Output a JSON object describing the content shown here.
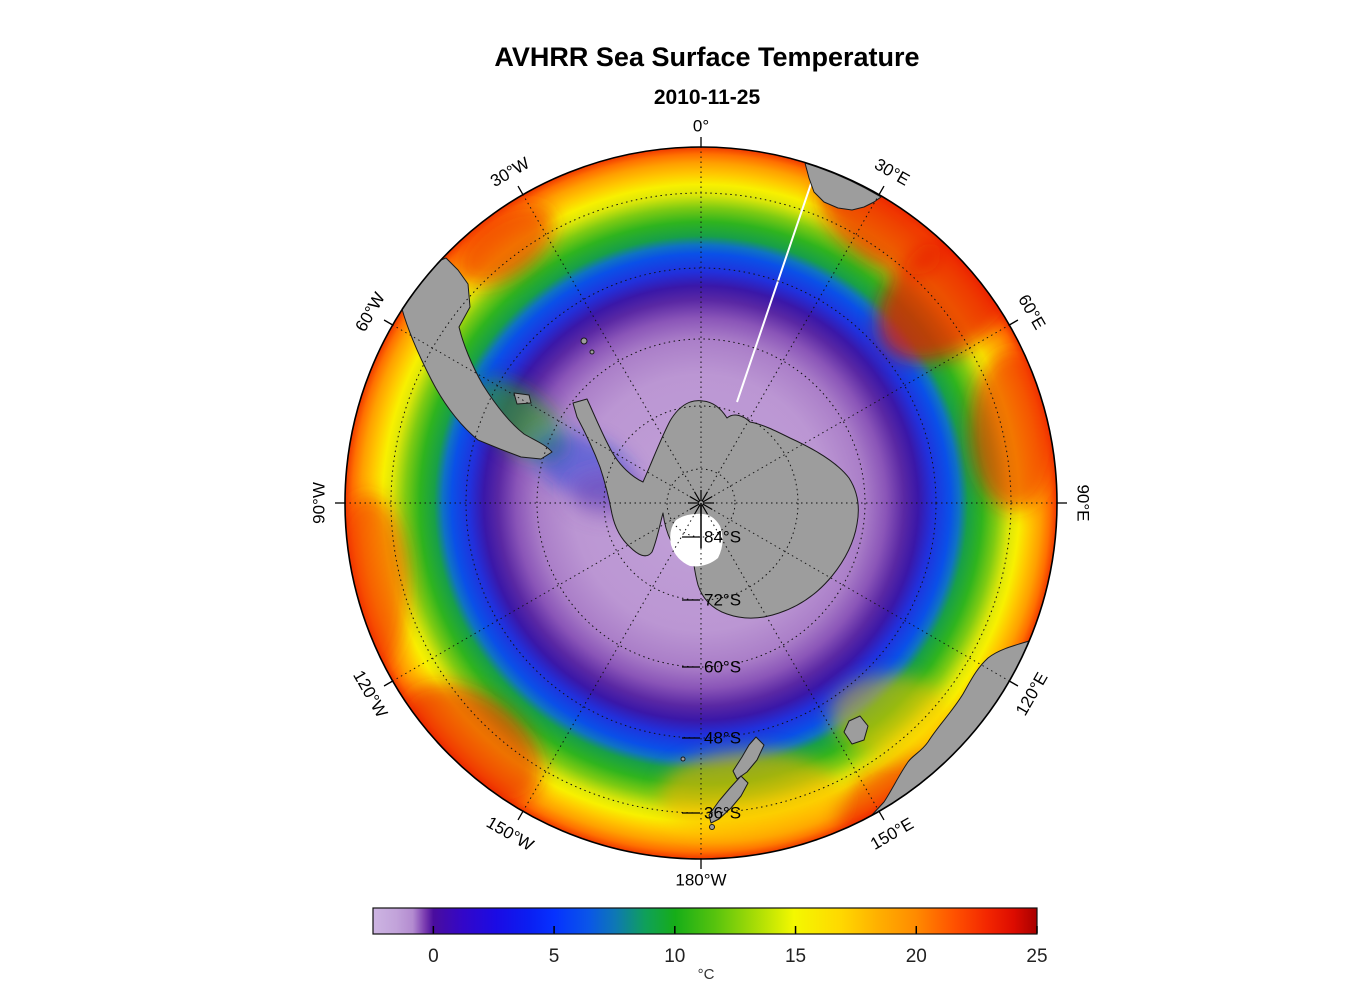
{
  "title": "AVHRR Sea Surface Temperature",
  "subtitle": "2010-11-25",
  "chart_data": {
    "type": "heatmap",
    "projection": "south-polar-stereographic",
    "title": "AVHRR Sea Surface Temperature",
    "subtitle": "2010-11-25",
    "colorbar": {
      "unit": "°C",
      "orientation": "horizontal",
      "range": [
        -2.5,
        25
      ],
      "ticks": [
        0,
        5,
        10,
        15,
        20,
        25
      ],
      "gradient": [
        {
          "frac": 0.0,
          "color": "#cdb5e2"
        },
        {
          "frac": 0.035,
          "color": "#c2a3da"
        },
        {
          "frac": 0.06,
          "color": "#b38bd0"
        },
        {
          "frac": 0.078,
          "color": "#7a3cb0"
        },
        {
          "frac": 0.091,
          "color": "#4a0d9e"
        },
        {
          "frac": 0.135,
          "color": "#3307c8"
        },
        {
          "frac": 0.185,
          "color": "#1b0be4"
        },
        {
          "frac": 0.235,
          "color": "#0a1ef2"
        },
        {
          "frac": 0.273,
          "color": "#0632ff"
        },
        {
          "frac": 0.325,
          "color": "#0a56e8"
        },
        {
          "frac": 0.365,
          "color": "#0e78b4"
        },
        {
          "frac": 0.41,
          "color": "#0fa05a"
        },
        {
          "frac": 0.455,
          "color": "#16ad18"
        },
        {
          "frac": 0.515,
          "color": "#57c30e"
        },
        {
          "frac": 0.575,
          "color": "#a6dc06"
        },
        {
          "frac": 0.634,
          "color": "#f4f800"
        },
        {
          "frac": 0.705,
          "color": "#ffd800"
        },
        {
          "frac": 0.76,
          "color": "#ffb000"
        },
        {
          "frac": 0.816,
          "color": "#ff8c00"
        },
        {
          "frac": 0.875,
          "color": "#ff5200"
        },
        {
          "frac": 0.925,
          "color": "#f32600"
        },
        {
          "frac": 0.965,
          "color": "#dd0c00"
        },
        {
          "frac": 1.0,
          "color": "#a80000"
        }
      ]
    },
    "graticule": {
      "latitude_rings": [
        {
          "label": "84°S",
          "radius_frac": 0.0955
        },
        {
          "label": "72°S",
          "radius_frac": 0.2725
        },
        {
          "label": "60°S",
          "radius_frac": 0.4607
        },
        {
          "label": "48°S",
          "radius_frac": 0.6601
        },
        {
          "label": "36°S",
          "radius_frac": 0.8708
        }
      ],
      "longitude_spokes": [
        {
          "label": "0°",
          "azimuth_deg": 0
        },
        {
          "label": "30°E",
          "azimuth_deg": 30
        },
        {
          "label": "60°E",
          "azimuth_deg": 60
        },
        {
          "label": "90°E",
          "azimuth_deg": 90
        },
        {
          "label": "120°E",
          "azimuth_deg": 120
        },
        {
          "label": "150°E",
          "azimuth_deg": 150
        },
        {
          "label": "180°W",
          "azimuth_deg": 180
        },
        {
          "label": "150°W",
          "azimuth_deg": -150
        },
        {
          "label": "120°W",
          "azimuth_deg": -120
        },
        {
          "label": "90°W",
          "azimuth_deg": -90
        },
        {
          "label": "60°W",
          "azimuth_deg": -60
        },
        {
          "label": "30°W",
          "azimuth_deg": -30
        }
      ]
    },
    "sst_vs_radius": [
      {
        "radius_frac": 0.0,
        "color": "#c2a2d8",
        "sst_c": -2.2
      },
      {
        "radius_frac": 0.36,
        "color": "#bb96d3",
        "sst_c": -2.0
      },
      {
        "radius_frac": 0.46,
        "color": "#aa7ec8",
        "sst_c": -1.2
      },
      {
        "radius_frac": 0.52,
        "color": "#8a55b8",
        "sst_c": -0.3
      },
      {
        "radius_frac": 0.57,
        "color": "#5a28a4",
        "sst_c": 0.8
      },
      {
        "radius_frac": 0.61,
        "color": "#3a17a8",
        "sst_c": 1.8
      },
      {
        "radius_frac": 0.65,
        "color": "#2130dc",
        "sst_c": 3.0
      },
      {
        "radius_frac": 0.7,
        "color": "#0a50e8",
        "sst_c": 5.0
      },
      {
        "radius_frac": 0.725,
        "color": "#0f72c4",
        "sst_c": 6.5
      },
      {
        "radius_frac": 0.75,
        "color": "#18a048",
        "sst_c": 8.0
      },
      {
        "radius_frac": 0.79,
        "color": "#2fb41e",
        "sst_c": 9.5
      },
      {
        "radius_frac": 0.83,
        "color": "#7ecb12",
        "sst_c": 11.5
      },
      {
        "radius_frac": 0.865,
        "color": "#d9e60a",
        "sst_c": 13.5
      },
      {
        "radius_frac": 0.895,
        "color": "#f8f000",
        "sst_c": 15.0
      },
      {
        "radius_frac": 0.925,
        "color": "#ffc800",
        "sst_c": 17.5
      },
      {
        "radius_frac": 0.955,
        "color": "#ffa000",
        "sst_c": 19.5
      },
      {
        "radius_frac": 0.98,
        "color": "#ff7000",
        "sst_c": 21.5
      },
      {
        "radius_frac": 1.0,
        "color": "#f03800",
        "sst_c": 23.0
      }
    ],
    "landmasses": [
      "Antarctica",
      "Antarctic Peninsula",
      "South America",
      "Falkland Islands",
      "Africa",
      "Australia",
      "Tasmania",
      "New Zealand"
    ],
    "land_color": "#9d9d9d",
    "no_data_features": [
      "white radial line toward 30°E",
      "white patch near Ross Ice Shelf"
    ]
  }
}
